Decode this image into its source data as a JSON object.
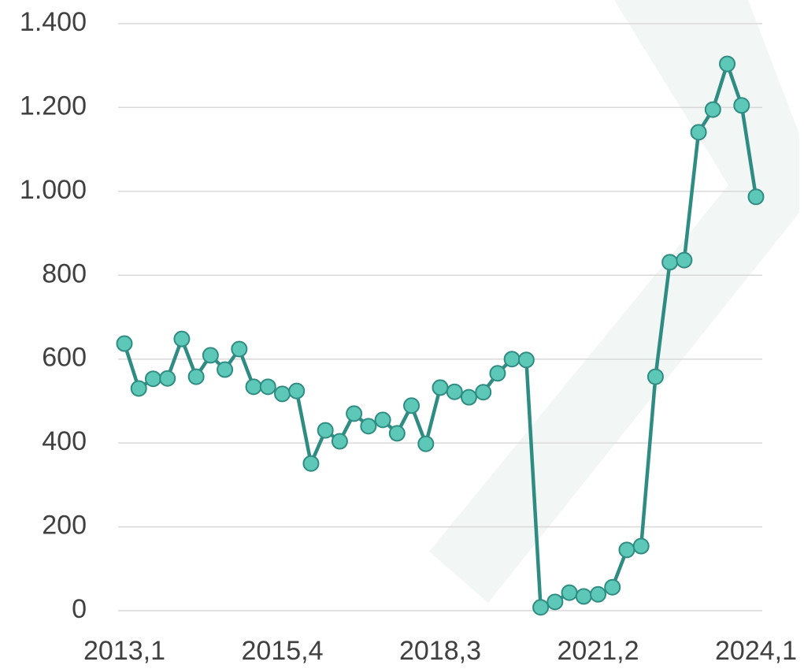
{
  "chart_data": {
    "type": "line",
    "categories": [
      "2013,1",
      null,
      null,
      null,
      null,
      null,
      null,
      null,
      null,
      null,
      null,
      "2015,4",
      null,
      null,
      null,
      null,
      null,
      null,
      null,
      null,
      null,
      null,
      "2018,3",
      null,
      null,
      null,
      null,
      null,
      null,
      null,
      null,
      null,
      null,
      "2021,2",
      null,
      null,
      null,
      null,
      null,
      null,
      null,
      null,
      null,
      null,
      "2024,1"
    ],
    "values": [
      637,
      530,
      553,
      554,
      648,
      558,
      609,
      575,
      624,
      534,
      534,
      517,
      524,
      351,
      430,
      404,
      470,
      440,
      455,
      423,
      489,
      398,
      532,
      522,
      509,
      521,
      566,
      600,
      598,
      8,
      21,
      43,
      34,
      39,
      56,
      145,
      154,
      558,
      831,
      836,
      1141,
      1195,
      1304,
      1205,
      987
    ],
    "color": "#2f8c82",
    "marker_color": "#5ec8b8",
    "ylim": [
      0,
      1400
    ],
    "yticks": [
      0,
      200,
      400,
      600,
      800,
      {
        "value": 1000,
        "label": "1.000"
      },
      {
        "value": 1200,
        "label": "1.200"
      },
      {
        "value": 1400,
        "label": "1.400"
      }
    ],
    "grid": true
  }
}
